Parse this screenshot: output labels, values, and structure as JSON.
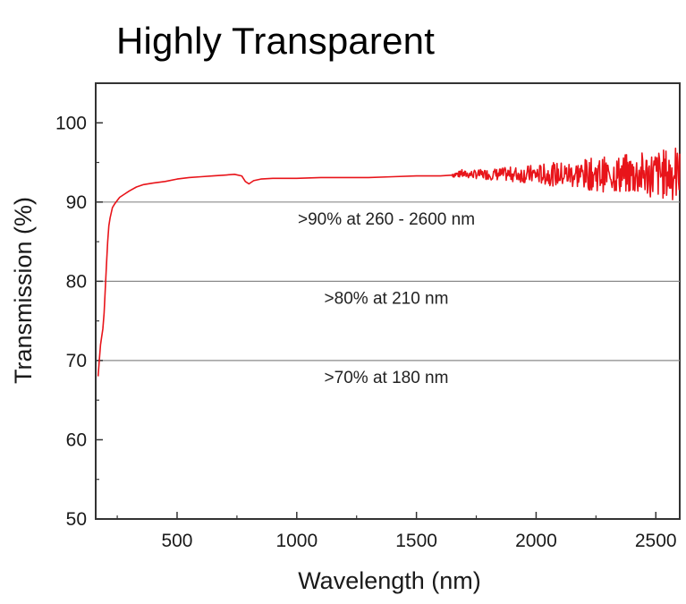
{
  "page_title": "Highly Transparent",
  "chart_data": {
    "type": "line",
    "title": "Highly Transparent",
    "xlabel": "Wavelength (nm)",
    "ylabel": "Transmission (%)",
    "xlim": [
      160,
      2600
    ],
    "ylim": [
      50,
      105
    ],
    "xticks": [
      500,
      1000,
      1500,
      2000,
      2500
    ],
    "yticks": [
      50,
      60,
      70,
      80,
      90,
      100
    ],
    "series": [
      {
        "name": "Transmission",
        "color": "#e8141a",
        "x": [
          170,
          175,
          180,
          185,
          190,
          195,
          200,
          205,
          210,
          215,
          220,
          230,
          240,
          250,
          260,
          280,
          300,
          330,
          360,
          400,
          450,
          500,
          550,
          600,
          650,
          700,
          740,
          770,
          785,
          800,
          820,
          850,
          900,
          1000,
          1100,
          1200,
          1300,
          1400,
          1500,
          1600,
          1650
        ],
        "y": [
          68,
          70,
          72,
          73,
          74,
          76,
          79,
          82,
          85,
          87,
          88,
          89.3,
          89.8,
          90.2,
          90.6,
          91.0,
          91.4,
          91.9,
          92.2,
          92.4,
          92.6,
          92.9,
          93.1,
          93.2,
          93.3,
          93.4,
          93.5,
          93.3,
          92.6,
          92.3,
          92.7,
          92.9,
          93.0,
          93.0,
          93.1,
          93.1,
          93.1,
          93.2,
          93.3,
          93.3,
          93.4
        ]
      }
    ],
    "noisy_segment": {
      "x_range": [
        1650,
        2600
      ],
      "baseline": 93.5,
      "amplitude": [
        0.4,
        3.5
      ]
    },
    "reference_lines": [
      {
        "y": 90,
        "label": ">90% at 260 - 2600 nm"
      },
      {
        "y": 80,
        "label": ">80% at 210 nm"
      },
      {
        "y": 70,
        "label": ">70% at 180 nm"
      }
    ]
  }
}
